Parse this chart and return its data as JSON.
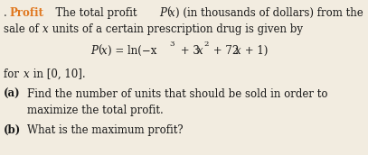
{
  "background_color": "#f2ece0",
  "title_color": "#e07820",
  "text_color": "#1a1a1a",
  "font_size": 8.5,
  "fig_width": 4.07,
  "fig_height": 1.72,
  "dpi": 100
}
